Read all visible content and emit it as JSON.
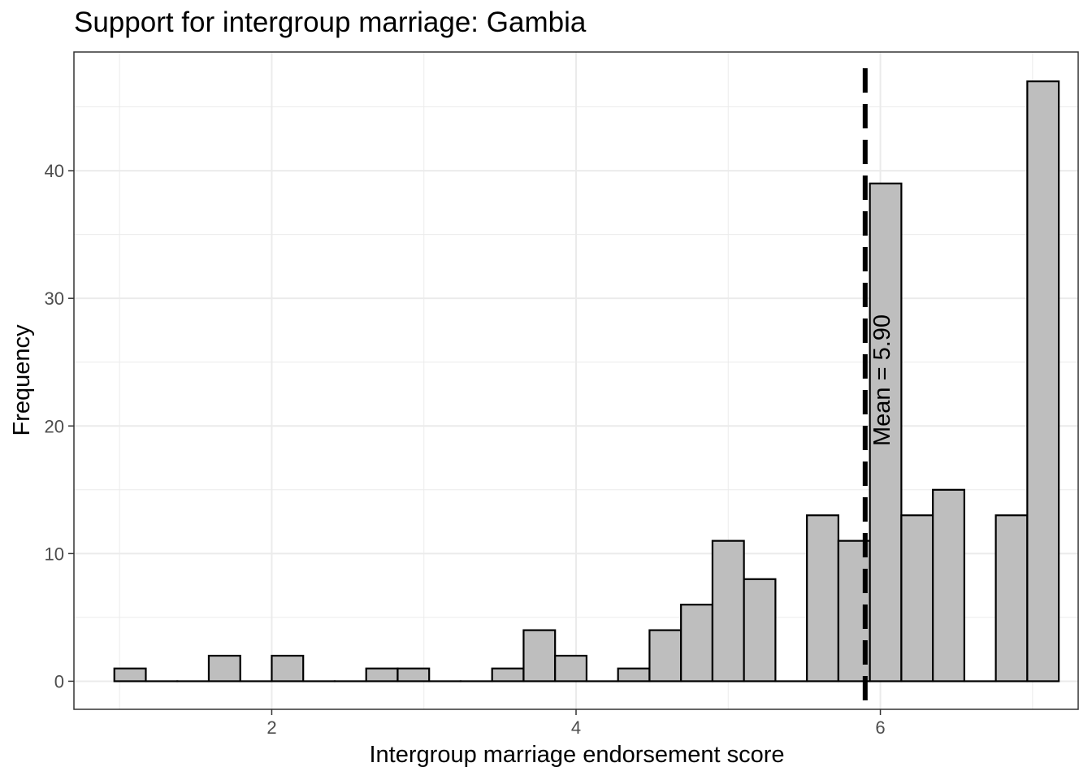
{
  "chart_data": {
    "type": "bar",
    "title": "Support for intergroup marriage: Gambia",
    "xlabel": "Intergroup marriage endorsement score",
    "ylabel": "Frequency",
    "xlim": [
      0.7,
      7.3
    ],
    "ylim": [
      -2.2,
      49.3
    ],
    "x_ticks": [
      2,
      4,
      6
    ],
    "y_ticks": [
      0,
      10,
      20,
      30,
      40
    ],
    "grid": true,
    "bins": [
      {
        "x0": 0.9655,
        "x1": 1.1724,
        "count": 1
      },
      {
        "x0": 1.1724,
        "x1": 1.3793,
        "count": 0
      },
      {
        "x0": 1.3793,
        "x1": 1.5862,
        "count": 0
      },
      {
        "x0": 1.5862,
        "x1": 1.7931,
        "count": 2
      },
      {
        "x0": 1.7931,
        "x1": 2.0,
        "count": 0
      },
      {
        "x0": 2.0,
        "x1": 2.2069,
        "count": 2
      },
      {
        "x0": 2.2069,
        "x1": 2.4138,
        "count": 0
      },
      {
        "x0": 2.4138,
        "x1": 2.6207,
        "count": 0
      },
      {
        "x0": 2.6207,
        "x1": 2.8276,
        "count": 1
      },
      {
        "x0": 2.8276,
        "x1": 3.0345,
        "count": 1
      },
      {
        "x0": 3.0345,
        "x1": 3.2414,
        "count": 0
      },
      {
        "x0": 3.2414,
        "x1": 3.4483,
        "count": 0
      },
      {
        "x0": 3.4483,
        "x1": 3.6552,
        "count": 1
      },
      {
        "x0": 3.6552,
        "x1": 3.8621,
        "count": 4
      },
      {
        "x0": 3.8621,
        "x1": 4.069,
        "count": 2
      },
      {
        "x0": 4.069,
        "x1": 4.2759,
        "count": 0
      },
      {
        "x0": 4.2759,
        "x1": 4.4828,
        "count": 1
      },
      {
        "x0": 4.4828,
        "x1": 4.6897,
        "count": 4
      },
      {
        "x0": 4.6897,
        "x1": 4.8966,
        "count": 6
      },
      {
        "x0": 4.8966,
        "x1": 5.1034,
        "count": 11
      },
      {
        "x0": 5.1034,
        "x1": 5.3103,
        "count": 8
      },
      {
        "x0": 5.3103,
        "x1": 5.5172,
        "count": 0
      },
      {
        "x0": 5.5172,
        "x1": 5.7241,
        "count": 13
      },
      {
        "x0": 5.7241,
        "x1": 5.931,
        "count": 11
      },
      {
        "x0": 5.931,
        "x1": 6.1379,
        "count": 39
      },
      {
        "x0": 6.1379,
        "x1": 6.3448,
        "count": 13
      },
      {
        "x0": 6.3448,
        "x1": 6.5517,
        "count": 15
      },
      {
        "x0": 6.5517,
        "x1": 6.7586,
        "count": 0
      },
      {
        "x0": 6.7586,
        "x1": 6.9655,
        "count": 13
      },
      {
        "x0": 6.9655,
        "x1": 7.1724,
        "count": 47
      }
    ],
    "mean": 5.9,
    "mean_label": "Mean = 5.90",
    "bar_fill": "#bebebe",
    "bar_stroke": "#000000",
    "grid_color": "#ebebeb"
  }
}
